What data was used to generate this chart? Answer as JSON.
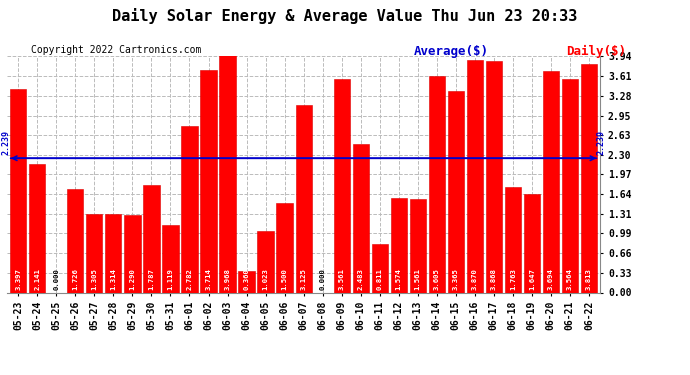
{
  "title": "Daily Solar Energy & Average Value Thu Jun 23 20:33",
  "copyright": "Copyright 2022 Cartronics.com",
  "legend_average": "Average($)",
  "legend_daily": "Daily($)",
  "average_value": 2.239,
  "average_label": "2.239",
  "categories": [
    "05-23",
    "05-24",
    "05-25",
    "05-26",
    "05-27",
    "05-28",
    "05-29",
    "05-30",
    "05-31",
    "06-01",
    "06-02",
    "06-03",
    "06-04",
    "06-05",
    "06-06",
    "06-07",
    "06-08",
    "06-09",
    "06-10",
    "06-11",
    "06-12",
    "06-13",
    "06-14",
    "06-15",
    "06-16",
    "06-17",
    "06-18",
    "06-19",
    "06-20",
    "06-21",
    "06-22"
  ],
  "values": [
    3.397,
    2.141,
    0.0,
    1.726,
    1.305,
    1.314,
    1.29,
    1.787,
    1.119,
    2.782,
    3.714,
    3.968,
    0.36,
    1.023,
    1.5,
    3.125,
    0.0,
    3.561,
    2.483,
    0.811,
    1.574,
    1.561,
    3.605,
    3.365,
    3.87,
    3.868,
    1.763,
    1.647,
    3.694,
    3.564,
    3.813
  ],
  "bar_color": "#ff0000",
  "bar_edge_color": "#dd0000",
  "average_line_color": "#0000cc",
  "average_text_color": "#0000cc",
  "ylim_min": 0,
  "ylim_max": 3.94,
  "yticks": [
    0.0,
    0.33,
    0.66,
    0.99,
    1.31,
    1.64,
    1.97,
    2.3,
    2.63,
    2.95,
    3.28,
    3.61,
    3.94
  ],
  "background_color": "#ffffff",
  "grid_color": "#bbbbbb",
  "title_fontsize": 11,
  "copyright_fontsize": 7,
  "legend_fontsize": 9,
  "value_label_fontsize": 5.2,
  "axis_label_fontsize": 7,
  "bar_width": 0.85
}
